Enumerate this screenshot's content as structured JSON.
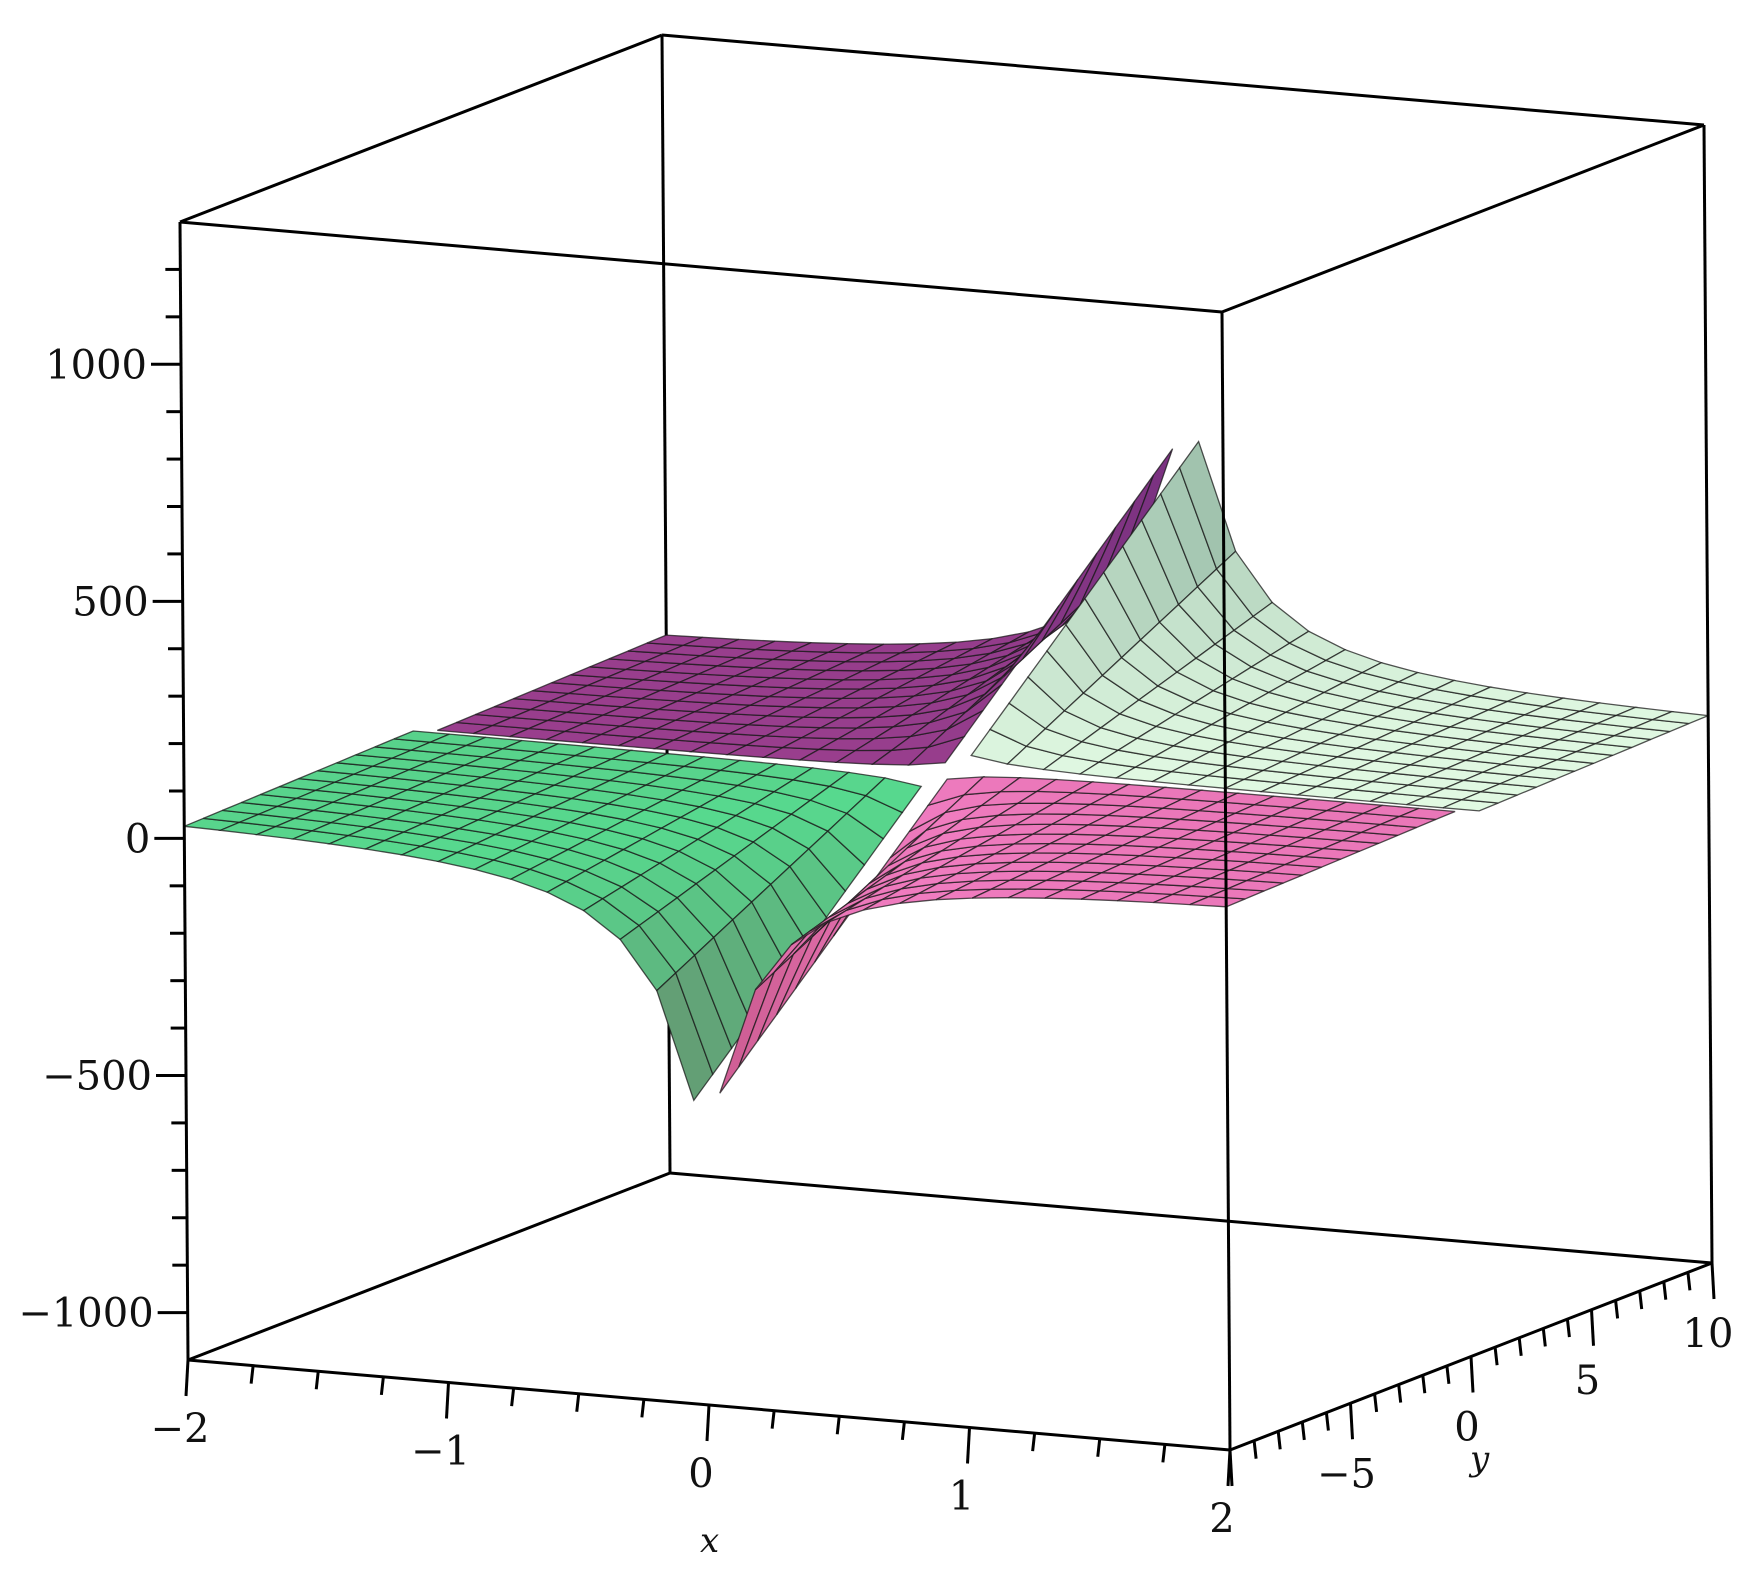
{
  "chart_data": {
    "type": "surface3d",
    "title": "",
    "x_axis": {
      "label": "x",
      "range": [
        -2,
        2
      ],
      "ticks": [
        -2,
        -1,
        0,
        1,
        2
      ],
      "tick_labels": [
        "−2",
        "−1",
        "0",
        "1",
        "2"
      ]
    },
    "y_axis": {
      "label": "y",
      "range": [
        -10,
        10
      ],
      "ticks": [
        -5,
        0,
        5,
        10
      ],
      "tick_labels": [
        "−5",
        "0",
        "5",
        "10"
      ]
    },
    "z_axis": {
      "label": "",
      "range": [
        -1100,
        1300
      ],
      "ticks": [
        -1000,
        -500,
        0,
        500,
        1000
      ],
      "tick_labels": [
        "−1000",
        "−500",
        "0",
        "500",
        "1000"
      ]
    },
    "grid": false,
    "box": true,
    "surfaces": [
      {
        "name": "",
        "region": "x<0, y<0",
        "shape": "sheet near z=0 diving to about -1000 as x approaches 0",
        "colors": [
          "#55d98f",
          "#5a5fd0",
          "#8e4e98",
          "#7a2a44"
        ]
      },
      {
        "name": "",
        "region": "x<0, y>0",
        "shape": "U-shaped wall rising to about 1000",
        "colors": [
          "#4a1f6e",
          "#6a2f7a",
          "#9b3f8e"
        ]
      },
      {
        "name": "",
        "region": "x>0, y>0",
        "shape": "U-shaped wall rising to about 1100",
        "colors": [
          "#3b6e5c",
          "#e8ffe8",
          "#4f8a5a"
        ]
      },
      {
        "name": "",
        "region": "x>0, y<0",
        "shape": "sheet near z=0 diving to about -1000 as x approaches 0",
        "colors": [
          "#f07cc0",
          "#ffe6f0",
          "#8a8a2a",
          "#8a1f3a"
        ]
      }
    ]
  }
}
